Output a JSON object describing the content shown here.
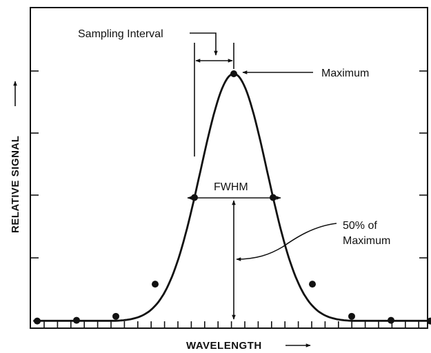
{
  "diagram": {
    "xlabel": "WAVELENGTH",
    "ylabel": "RELATIVE SIGNAL",
    "annotations": {
      "sampling_interval": "Sampling Interval",
      "maximum": "Maximum",
      "fwhm": "FWHM",
      "half_max_line1": "50% of",
      "half_max_line2": "Maximum"
    },
    "peak": {
      "center": 0.0,
      "height": 1.0,
      "fwhm_in_sampling_intervals": 2.0
    },
    "sample_points": [
      {
        "x": -5,
        "y": 0.001
      },
      {
        "x": -4,
        "y": 0.004
      },
      {
        "x": -3,
        "y": 0.02
      },
      {
        "x": -2,
        "y": 0.15
      },
      {
        "x": -1,
        "y": 0.5
      },
      {
        "x": 0,
        "y": 1.0
      },
      {
        "x": 1,
        "y": 0.5
      },
      {
        "x": 2,
        "y": 0.15
      },
      {
        "x": 3,
        "y": 0.02
      },
      {
        "x": 4,
        "y": 0.004
      },
      {
        "x": 5,
        "y": 0.001
      }
    ],
    "colors": {
      "ink": "#111111",
      "background": "#ffffff"
    }
  }
}
